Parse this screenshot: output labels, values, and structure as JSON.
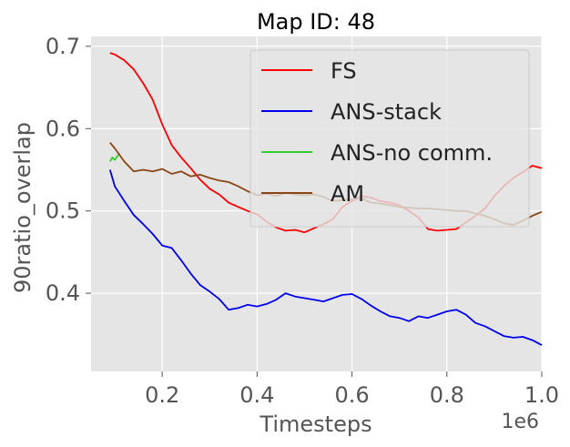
{
  "chart_data": {
    "type": "line",
    "title": "Map ID: 48",
    "xlabel": "Timesteps",
    "ylabel": "90ratio_overlap",
    "x_offset_label": "1e6",
    "xlim": [
      0.05,
      1.0
    ],
    "ylim": [
      0.305,
      0.712
    ],
    "xticks": [
      0.2,
      0.4,
      0.6,
      0.8,
      1.0
    ],
    "xtick_labels": [
      "0.2",
      "0.4",
      "0.6",
      "0.8",
      "1.0"
    ],
    "yticks": [
      0.4,
      0.5,
      0.6,
      0.7
    ],
    "ytick_labels": [
      "0.4",
      "0.5",
      "0.6",
      "0.7"
    ],
    "grid": true,
    "background": "#e5e5e5",
    "legend_position": "top-right",
    "series": [
      {
        "name": "FS",
        "color": "#ff0000",
        "x": [
          0.09,
          0.1,
          0.12,
          0.14,
          0.16,
          0.18,
          0.2,
          0.22,
          0.24,
          0.26,
          0.28,
          0.3,
          0.32,
          0.34,
          0.36,
          0.38,
          0.4,
          0.42,
          0.44,
          0.46,
          0.48,
          0.5,
          0.52,
          0.54,
          0.56,
          0.58,
          0.6,
          0.62,
          0.64,
          0.66,
          0.68,
          0.7,
          0.72,
          0.74,
          0.76,
          0.78,
          0.8,
          0.82,
          0.84,
          0.86,
          0.88,
          0.9,
          0.92,
          0.94,
          0.96,
          0.98,
          1.0
        ],
        "y": [
          0.692,
          0.69,
          0.683,
          0.672,
          0.655,
          0.635,
          0.605,
          0.58,
          0.565,
          0.552,
          0.538,
          0.527,
          0.52,
          0.51,
          0.505,
          0.5,
          0.496,
          0.487,
          0.48,
          0.476,
          0.477,
          0.474,
          0.479,
          0.484,
          0.49,
          0.505,
          0.512,
          0.518,
          0.516,
          0.512,
          0.51,
          0.507,
          0.5,
          0.492,
          0.478,
          0.476,
          0.477,
          0.478,
          0.486,
          0.494,
          0.503,
          0.518,
          0.53,
          0.54,
          0.547,
          0.555,
          0.552
        ]
      },
      {
        "name": "ANS-stack",
        "color": "#0000ee",
        "x": [
          0.09,
          0.1,
          0.12,
          0.14,
          0.16,
          0.18,
          0.2,
          0.22,
          0.24,
          0.26,
          0.28,
          0.3,
          0.32,
          0.34,
          0.36,
          0.38,
          0.4,
          0.42,
          0.44,
          0.46,
          0.48,
          0.5,
          0.52,
          0.54,
          0.56,
          0.58,
          0.6,
          0.62,
          0.64,
          0.66,
          0.68,
          0.7,
          0.72,
          0.74,
          0.76,
          0.78,
          0.8,
          0.82,
          0.84,
          0.86,
          0.88,
          0.9,
          0.92,
          0.94,
          0.96,
          0.98,
          1.0
        ],
        "y": [
          0.55,
          0.53,
          0.512,
          0.495,
          0.484,
          0.472,
          0.458,
          0.455,
          0.44,
          0.424,
          0.41,
          0.402,
          0.393,
          0.38,
          0.382,
          0.386,
          0.384,
          0.387,
          0.392,
          0.4,
          0.396,
          0.394,
          0.392,
          0.39,
          0.394,
          0.398,
          0.399,
          0.393,
          0.385,
          0.378,
          0.372,
          0.37,
          0.366,
          0.372,
          0.37,
          0.374,
          0.378,
          0.38,
          0.374,
          0.364,
          0.36,
          0.354,
          0.348,
          0.346,
          0.347,
          0.343,
          0.337
        ]
      },
      {
        "name": "ANS-no comm.",
        "color": "#33cc33",
        "x": [
          0.09,
          0.095,
          0.1,
          0.105,
          0.11
        ],
        "y": [
          0.56,
          0.565,
          0.562,
          0.566,
          0.57
        ]
      },
      {
        "name": "AM",
        "color": "#8b4513",
        "x": [
          0.09,
          0.1,
          0.12,
          0.14,
          0.16,
          0.18,
          0.2,
          0.22,
          0.24,
          0.26,
          0.28,
          0.3,
          0.32,
          0.34,
          0.36,
          0.38,
          0.4,
          0.42,
          0.44,
          0.46,
          0.48,
          0.5,
          0.52,
          0.54,
          0.56,
          0.58,
          0.6,
          0.62,
          0.64,
          0.66,
          0.68,
          0.7,
          0.72,
          0.74,
          0.76,
          0.78,
          0.8,
          0.82,
          0.84,
          0.86,
          0.88,
          0.9,
          0.92,
          0.94,
          0.96,
          0.98,
          1.0
        ],
        "y": [
          0.583,
          0.576,
          0.56,
          0.548,
          0.55,
          0.548,
          0.551,
          0.545,
          0.548,
          0.542,
          0.544,
          0.54,
          0.537,
          0.535,
          0.53,
          0.524,
          0.519,
          0.521,
          0.518,
          0.522,
          0.52,
          0.519,
          0.52,
          0.517,
          0.512,
          0.513,
          0.514,
          0.515,
          0.51,
          0.509,
          0.507,
          0.505,
          0.504,
          0.503,
          0.503,
          0.502,
          0.501,
          0.5,
          0.5,
          0.497,
          0.494,
          0.49,
          0.485,
          0.483,
          0.488,
          0.494,
          0.499
        ]
      }
    ]
  }
}
